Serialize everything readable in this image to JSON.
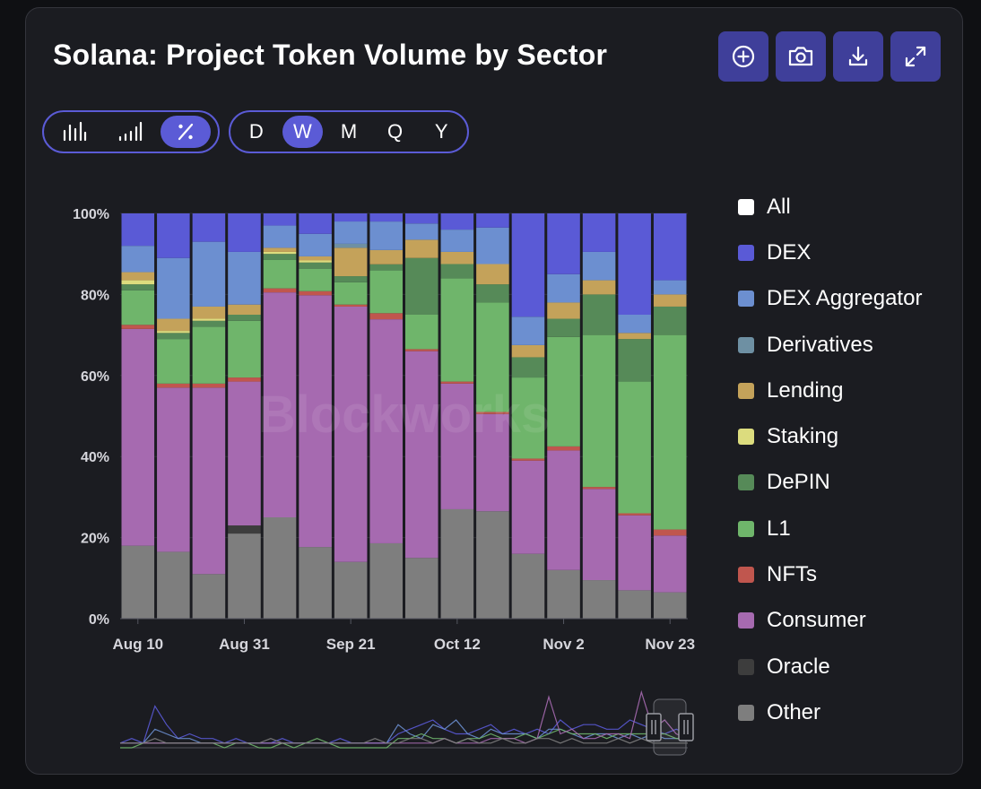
{
  "title": "Solana: Project Token Volume by Sector",
  "toolbar": [
    {
      "name": "add-button",
      "icon": "plus-circle-icon"
    },
    {
      "name": "screenshot-button",
      "icon": "camera-icon"
    },
    {
      "name": "download-button",
      "icon": "download-icon"
    },
    {
      "name": "fullscreen-button",
      "icon": "expand-icon"
    }
  ],
  "modes": [
    {
      "name": "mode-bar-button",
      "icon": "bar-chart-icon",
      "active": false
    },
    {
      "name": "mode-stacked-button",
      "icon": "ascending-bars-icon",
      "active": false
    },
    {
      "name": "mode-percent-button",
      "icon": "percent-icon",
      "active": true
    }
  ],
  "periods": [
    {
      "label": "D",
      "active": false
    },
    {
      "label": "W",
      "active": true
    },
    {
      "label": "M",
      "active": false
    },
    {
      "label": "Q",
      "active": false
    },
    {
      "label": "Y",
      "active": false
    }
  ],
  "watermark": "Blockworks",
  "colors": {
    "All": "#ffffff",
    "DEX": "#5a5ad6",
    "DEX Aggregator": "#6c8fd0",
    "Derivatives": "#6e90a3",
    "Lending": "#c4a25a",
    "Staking": "#dcdc7e",
    "DePIN": "#568a58",
    "L1": "#6fb56b",
    "NFTs": "#c0564e",
    "Consumer": "#a66ab0",
    "Oracle": "#3d3d3d",
    "Other": "#7e7e7e"
  },
  "chart_data": {
    "type": "bar",
    "stacked": true,
    "normalized": true,
    "title": "Solana: Project Token Volume by Sector",
    "ylim": [
      0,
      100
    ],
    "yticks": [
      "0%",
      "20%",
      "40%",
      "60%",
      "80%",
      "100%"
    ],
    "xtick_labels": [
      {
        "index": 0,
        "label": "Aug 10"
      },
      {
        "index": 3,
        "label": "Aug 31"
      },
      {
        "index": 6,
        "label": "Sep 21"
      },
      {
        "index": 9,
        "label": "Oct 12"
      },
      {
        "index": 12,
        "label": "Nov 2"
      },
      {
        "index": 15,
        "label": "Nov 23"
      }
    ],
    "legend": [
      "All",
      "DEX",
      "DEX Aggregator",
      "Derivatives",
      "Lending",
      "Staking",
      "DePIN",
      "L1",
      "NFTs",
      "Consumer",
      "Oracle",
      "Other"
    ],
    "stack_order": [
      "Other",
      "Oracle",
      "Consumer",
      "NFTs",
      "L1",
      "DePIN",
      "Staking",
      "Lending",
      "Derivatives",
      "DEX Aggregator",
      "DEX"
    ],
    "categories": [
      "Aug 10",
      "Aug 17",
      "Aug 24",
      "Aug 31",
      "Sep 7",
      "Sep 14",
      "Sep 21",
      "Sep 28",
      "Oct 5",
      "Oct 12",
      "Oct 19",
      "Oct 26",
      "Nov 2",
      "Nov 9",
      "Nov 16",
      "Nov 23"
    ],
    "series": [
      {
        "name": "Other",
        "values": [
          18,
          16.5,
          11,
          21,
          25,
          17.5,
          14,
          18.5,
          15,
          27,
          26.5,
          16,
          12,
          9.5,
          7,
          6.5
        ]
      },
      {
        "name": "Oracle",
        "values": [
          0,
          0,
          0,
          2,
          0,
          0,
          0,
          0,
          0,
          0,
          0,
          0,
          0,
          0,
          0,
          0
        ]
      },
      {
        "name": "Consumer",
        "values": [
          53.5,
          40.5,
          46,
          35.5,
          55.5,
          61.5,
          63,
          55,
          51,
          31,
          24,
          23,
          29.5,
          22.5,
          18.5,
          14
        ]
      },
      {
        "name": "NFTs",
        "values": [
          1,
          1,
          1,
          1,
          1,
          1,
          0.5,
          1.5,
          0.5,
          0.5,
          0.5,
          0.5,
          1,
          0.5,
          0.5,
          1.5
        ]
      },
      {
        "name": "L1",
        "values": [
          8.5,
          11,
          14,
          14,
          7,
          5.5,
          5.5,
          10.5,
          8.5,
          25.5,
          27,
          20,
          27,
          37.5,
          32.5,
          48
        ]
      },
      {
        "name": "DePIN",
        "values": [
          1.5,
          1.5,
          1.5,
          1.5,
          1.5,
          1.5,
          1.5,
          1.5,
          14,
          3.5,
          4.5,
          5,
          4.5,
          10,
          10.5,
          7
        ]
      },
      {
        "name": "Staking",
        "values": [
          1,
          0.5,
          0.5,
          0,
          0.5,
          0.5,
          0,
          0,
          0,
          0,
          0,
          0,
          0,
          0,
          0,
          0
        ]
      },
      {
        "name": "Lending",
        "values": [
          2,
          3,
          3,
          2.5,
          1,
          1,
          7,
          3.5,
          4.5,
          3,
          5,
          3,
          4,
          3.5,
          1.5,
          3
        ]
      },
      {
        "name": "Derivatives",
        "values": [
          0,
          0,
          0,
          0,
          0,
          0,
          1,
          0,
          0,
          0,
          0,
          0,
          0,
          0,
          0,
          0
        ]
      },
      {
        "name": "DEX Aggregator",
        "values": [
          6.5,
          15,
          16,
          13,
          5.5,
          5.5,
          5.5,
          7,
          4,
          5.5,
          9,
          7,
          7,
          7,
          4.5,
          3.5
        ]
      },
      {
        "name": "DEX",
        "values": [
          8,
          11,
          7,
          9.5,
          3,
          5,
          2,
          2,
          2.5,
          4,
          3.5,
          25.5,
          15,
          9.5,
          25,
          16.5
        ]
      }
    ],
    "navigator": {
      "series": [
        {
          "name": "DEX",
          "values": [
            1,
            2,
            1,
            9,
            5,
            2,
            3,
            2,
            2,
            1,
            2,
            1,
            1,
            1,
            2,
            1,
            1,
            1,
            1,
            2,
            1,
            1,
            1,
            1,
            3,
            4,
            5,
            6,
            4,
            3,
            3,
            4,
            5,
            3,
            4,
            3,
            4,
            3,
            6,
            4,
            5,
            5,
            4,
            4,
            6,
            5,
            4,
            3,
            4,
            3
          ]
        },
        {
          "name": "DEX Aggregator",
          "values": [
            1,
            1,
            1,
            4,
            3,
            2,
            2,
            1,
            1,
            1,
            1,
            1,
            1,
            1,
            1,
            1,
            1,
            1,
            1,
            1,
            1,
            1,
            1,
            1,
            5,
            3,
            2,
            5,
            4,
            6,
            3,
            2,
            4,
            3,
            3,
            3,
            2,
            4,
            4,
            3,
            2,
            3,
            3,
            2,
            3,
            2,
            3,
            2,
            2,
            2
          ]
        },
        {
          "name": "L1",
          "values": [
            0,
            0,
            1,
            1,
            1,
            1,
            1,
            1,
            1,
            0,
            1,
            1,
            0,
            0,
            1,
            0,
            1,
            2,
            1,
            0,
            0,
            0,
            0,
            0,
            2,
            2,
            3,
            2,
            2,
            1,
            2,
            2,
            3,
            2,
            2,
            3,
            2,
            3,
            4,
            3,
            3,
            3,
            2,
            3,
            3,
            3,
            3,
            3,
            2,
            2
          ]
        },
        {
          "name": "Consumer",
          "values": [
            1,
            1,
            1,
            1,
            1,
            1,
            1,
            1,
            1,
            1,
            1,
            1,
            1,
            1,
            1,
            1,
            1,
            1,
            1,
            1,
            1,
            1,
            1,
            1,
            1,
            1,
            1,
            1,
            2,
            1,
            1,
            1,
            2,
            2,
            2,
            1,
            2,
            11,
            3,
            4,
            2,
            2,
            3,
            3,
            2,
            12,
            4,
            6,
            3,
            2
          ]
        },
        {
          "name": "Other",
          "values": [
            1,
            1,
            1,
            2,
            1,
            1,
            1,
            1,
            1,
            1,
            1,
            1,
            1,
            2,
            1,
            1,
            1,
            1,
            1,
            1,
            1,
            1,
            2,
            1,
            1,
            2,
            2,
            1,
            2,
            1,
            2,
            1,
            1,
            2,
            1,
            1,
            2,
            2,
            1,
            2,
            1,
            1,
            1,
            2,
            1,
            2,
            1,
            1,
            1,
            1
          ]
        }
      ]
    }
  }
}
